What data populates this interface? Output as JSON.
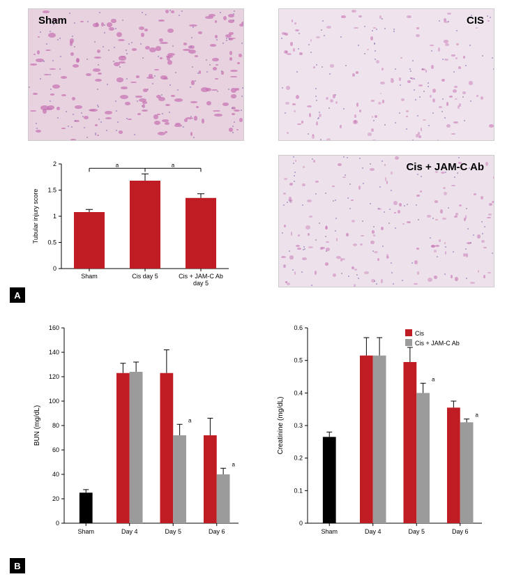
{
  "panelA": {
    "histology": {
      "sham_label": "Sham",
      "cis_label": "CIS",
      "jamc_label": "Cis + JAM-C  Ab",
      "sham_bg": "#e9d2e0",
      "cis_bg": "#efe3ee",
      "jamc_bg": "#ede1eb",
      "speck_color": "#c46fb0",
      "nucleus_color": "#7b64a8"
    },
    "barChart": {
      "type": "bar",
      "ylabel": "Tubular injury score",
      "ylim": [
        0,
        2
      ],
      "ytick_step": 0.5,
      "categories": [
        "Sham",
        "Cis day 5",
        "Cis + JAM-C  Ab\nday 5"
      ],
      "values": [
        1.08,
        1.68,
        1.35
      ],
      "errors": [
        0.05,
        0.13,
        0.08
      ],
      "bar_color": "#c01c24",
      "axis_color": "#000000",
      "grid_color": "#ffffff",
      "tick_fontsize": 9,
      "label_fontsize": 9,
      "sig_markers": [
        {
          "from": 0,
          "to": 1,
          "label": "a"
        },
        {
          "from": 1,
          "to": 2,
          "label": "a"
        }
      ]
    }
  },
  "panelB": {
    "legend": {
      "cis": "Cis",
      "jamc": "Cis + JAM-C  Ab",
      "cis_color": "#c01c24",
      "jamc_color": "#9b9b9b",
      "sham_color": "#000000"
    },
    "bun": {
      "type": "bar",
      "ylabel": "BUN (mg/dL)",
      "ylim": [
        0,
        160
      ],
      "ytick_step": 20,
      "categories": [
        "Sham",
        "Day 4",
        "Day 5",
        "Day 6"
      ],
      "series": [
        {
          "key": "Cis",
          "color": "#c01c24",
          "values": [
            null,
            123,
            123,
            72
          ],
          "errors": [
            null,
            8,
            19,
            14
          ]
        },
        {
          "key": "Cis + JAM-C Ab",
          "color": "#9b9b9b",
          "values": [
            null,
            124,
            72,
            40
          ],
          "errors": [
            null,
            8,
            9,
            5
          ]
        }
      ],
      "sham_value": 25,
      "sham_error": 2.5,
      "sig_labels": [
        {
          "cat": 2,
          "series": 1,
          "text": "a"
        },
        {
          "cat": 3,
          "series": 1,
          "text": "a"
        }
      ],
      "axis_color": "#000000",
      "label_fontsize": 10
    },
    "creatinine": {
      "type": "bar",
      "ylabel": "Creatinine (mg/dL)",
      "ylim": [
        0,
        0.6
      ],
      "ytick_step": 0.1,
      "categories": [
        "Sham",
        "Day 4",
        "Day 5",
        "Day 6"
      ],
      "series": [
        {
          "key": "Cis",
          "color": "#c01c24",
          "values": [
            null,
            0.515,
            0.495,
            0.355
          ],
          "errors": [
            null,
            0.055,
            0.045,
            0.02
          ]
        },
        {
          "key": "Cis + JAM-C Ab",
          "color": "#9b9b9b",
          "values": [
            null,
            0.515,
            0.4,
            0.31
          ],
          "errors": [
            null,
            0.055,
            0.03,
            0.01
          ]
        }
      ],
      "sham_value": 0.265,
      "sham_error": 0.015,
      "sig_labels": [
        {
          "cat": 2,
          "series": 1,
          "text": "a"
        },
        {
          "cat": 3,
          "series": 1,
          "text": "a"
        }
      ],
      "axis_color": "#000000",
      "label_fontsize": 10
    }
  }
}
